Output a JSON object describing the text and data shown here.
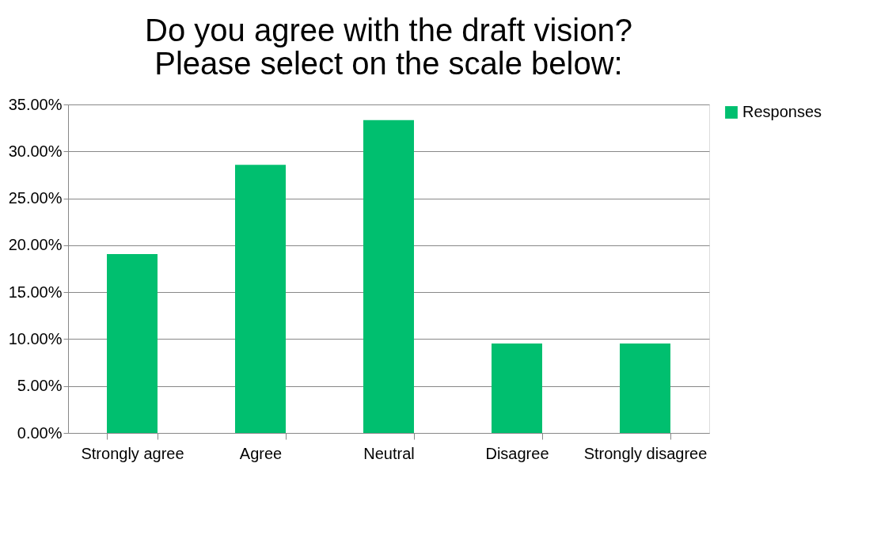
{
  "chart_data": {
    "type": "bar",
    "title": "Do you agree with the draft vision? Please select on the scale below:",
    "categories": [
      "Strongly agree",
      "Agree",
      "Neutral",
      "Disagree",
      "Strongly disagree"
    ],
    "series": [
      {
        "name": "Responses",
        "color": "#00bf6f",
        "values": [
          19.05,
          28.57,
          33.33,
          9.52,
          9.52
        ]
      }
    ],
    "ylim": [
      0,
      35
    ],
    "yticks": [
      {
        "value": 0,
        "label": "0.00%"
      },
      {
        "value": 5,
        "label": "5.00%"
      },
      {
        "value": 10,
        "label": "10.00%"
      },
      {
        "value": 15,
        "label": "15.00%"
      },
      {
        "value": 20,
        "label": "20.00%"
      },
      {
        "value": 25,
        "label": "25.00%"
      },
      {
        "value": 30,
        "label": "30.00%"
      },
      {
        "value": 35,
        "label": "35.00%"
      }
    ],
    "grid": "y",
    "legend": "right"
  }
}
